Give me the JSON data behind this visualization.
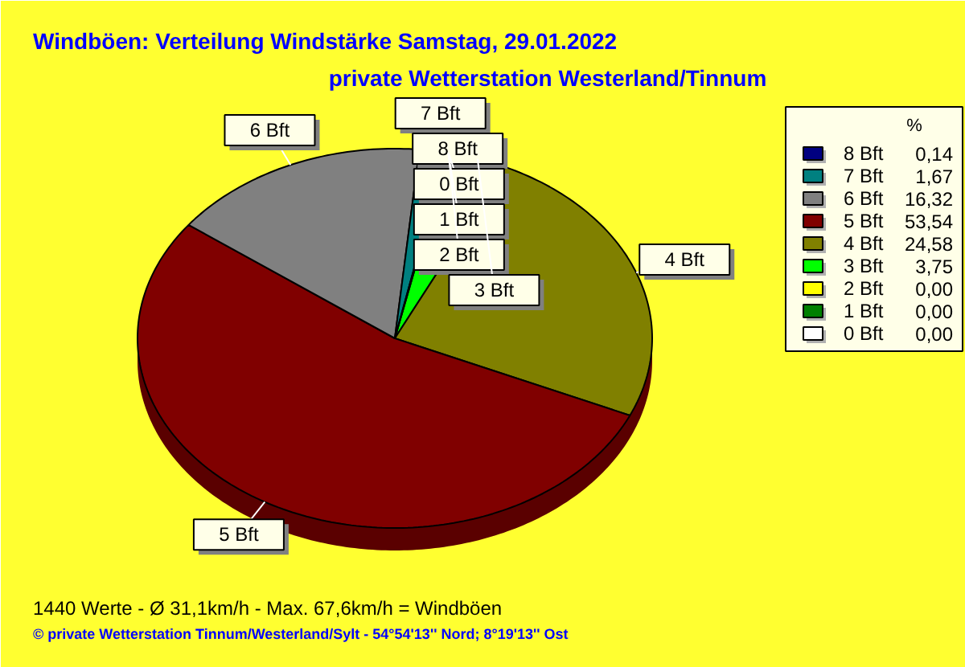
{
  "chart_data": {
    "type": "pie",
    "title": "Windböen: Verteilung Windstärke  Samstag, 29.01.2022",
    "subtitle": "private Wetterstation Westerland/Tinnum",
    "legend_title": "%",
    "categories": [
      "8 Bft",
      "7 Bft",
      "6 Bft",
      "5 Bft",
      "4 Bft",
      "3 Bft",
      "2 Bft",
      "1 Bft",
      "0 Bft"
    ],
    "values": [
      0.14,
      1.67,
      16.32,
      53.54,
      24.58,
      3.75,
      0.0,
      0.0,
      0.0
    ],
    "value_labels": [
      "0,14",
      "1,67",
      "16,32",
      "53,54",
      "24,58",
      "3,75",
      "0,00",
      "0,00",
      "0,00"
    ],
    "colors": [
      "#000080",
      "#008080",
      "#808080",
      "#800000",
      "#808000",
      "#00ff00",
      "#ffff00",
      "#008000",
      "#ffffff"
    ],
    "legend": "top right",
    "annotations": [
      "1440 Werte   -   Ø 31,1km/h  -  Max. 67,6km/h = Windböen",
      "© private Wetterstation Tinnum/Westerland/Sylt  -  54°54'13'' Nord; 8°19'13'' Ost"
    ]
  }
}
